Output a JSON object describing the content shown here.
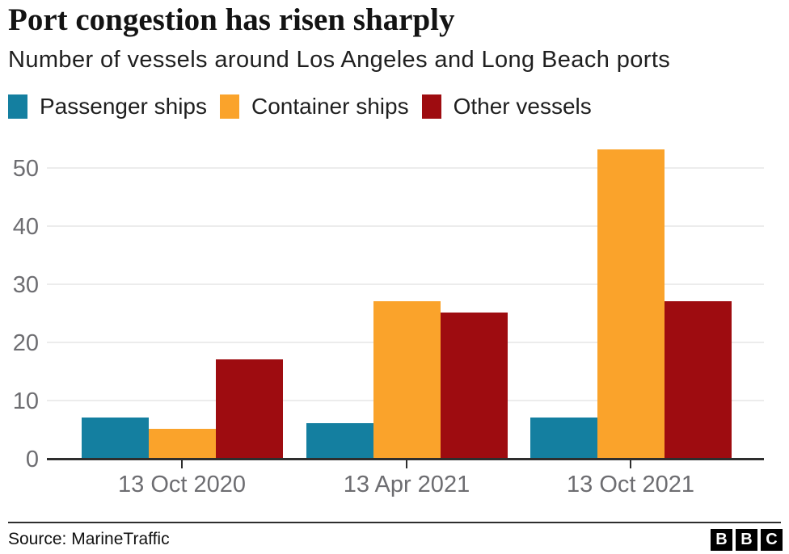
{
  "chart_data": {
    "type": "bar",
    "title": "Port congestion has risen sharply",
    "subtitle": "Number of vessels around Los Angeles and Long Beach ports",
    "categories": [
      "13 Oct 2020",
      "13 Apr 2021",
      "13 Oct 2021"
    ],
    "series": [
      {
        "name": "Passenger ships",
        "color": "#147FA0",
        "values": [
          7,
          6,
          7
        ]
      },
      {
        "name": "Container ships",
        "color": "#FAA32B",
        "values": [
          5,
          27,
          53
        ]
      },
      {
        "name": "Other vessels",
        "color": "#9E0C10",
        "values": [
          17,
          25,
          27
        ]
      }
    ],
    "ylim": [
      0,
      55
    ],
    "yticks": [
      0,
      10,
      20,
      30,
      40,
      50
    ],
    "grid": true,
    "legend_position": "top",
    "xlabel": "",
    "ylabel": ""
  },
  "colors": {
    "axis": "#2E2E2E",
    "gridline": "#ECECEC",
    "tick_label": "#6D6D71",
    "tick_mark": "#2E2E2E"
  },
  "footer": {
    "source": "Source: MarineTraffic",
    "logo_letters": [
      "B",
      "B",
      "C"
    ]
  }
}
